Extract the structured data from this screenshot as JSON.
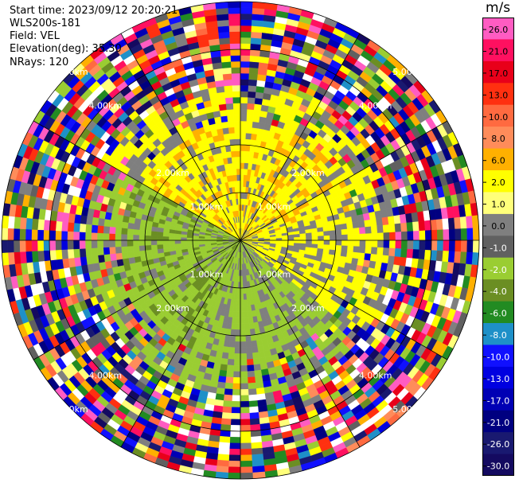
{
  "header": {
    "start_time": "Start time: 2023/09/12 20:20:21",
    "instrument": "WLS200s-181",
    "field": "Field: VEL",
    "elevation": "Elevation(deg): 35.30",
    "nrays": "NRays: 120"
  },
  "chart_data": {
    "type": "heatmap",
    "projection": "polar-ppi",
    "field": "VEL",
    "units": "m/s",
    "nrays": 120,
    "range_rings_km": [
      1.0,
      2.0,
      4.0,
      5.0
    ],
    "range_ring_labels": [
      "1.00km",
      "2.00km",
      "4.00km",
      "5.00km"
    ],
    "spokes_deg": [
      0,
      30,
      60,
      90,
      120,
      150,
      180,
      210,
      240,
      270,
      300,
      330
    ],
    "colorbar": {
      "ticks": [
        "26.0",
        "21.0",
        "17.0",
        "13.0",
        "10.0",
        "8.0",
        "6.0",
        "2.0",
        "1.0",
        "0.0",
        "-1.0",
        "-2.0",
        "-4.0",
        "-6.0",
        "-8.0",
        "-10.0",
        "-13.0",
        "-17.0",
        "-21.0",
        "-26.0",
        "-30.0"
      ],
      "colors": [
        "#ff5cc2",
        "#ff1060",
        "#e8001a",
        "#ff3010",
        "#ff6a40",
        "#ff8c5a",
        "#ffb000",
        "#ffff00",
        "#ffff7a",
        "#7f7f7f",
        "#606060",
        "#9acd32",
        "#6b8e23",
        "#228b22",
        "#1e90c8",
        "#1010ff",
        "#0000e0",
        "#0000b4",
        "#000080",
        "#191970",
        "#140a60"
      ]
    },
    "inner_field_pattern": [
      {
        "az_from": 300,
        "az_to": 75,
        "dominant": "#ffff00",
        "secondary": "#ffb000"
      },
      {
        "az_from": 75,
        "az_to": 130,
        "dominant": "#ffff00",
        "secondary": "#7f7f7f"
      },
      {
        "az_from": 130,
        "az_to": 200,
        "dominant": "#9acd32",
        "secondary": "#7f7f7f"
      },
      {
        "az_from": 200,
        "az_to": 300,
        "dominant": "#9acd32",
        "secondary": "#6b8e23"
      }
    ]
  }
}
